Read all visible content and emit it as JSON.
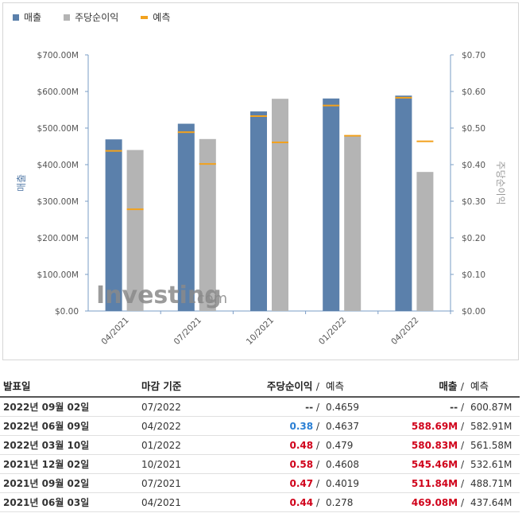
{
  "legend": {
    "revenue": "매출",
    "eps": "주당순이익",
    "forecast": "예측"
  },
  "colors": {
    "revenue": "#5b80ab",
    "eps": "#b4b4b4",
    "forecast": "#f2a21e",
    "beat": "#d0021b",
    "miss": "#2a7fd4"
  },
  "watermark": {
    "brand": "Investing",
    "suffix": ".com"
  },
  "chart_data": {
    "type": "bar",
    "categories": [
      "04/2021",
      "07/2021",
      "10/2021",
      "01/2022",
      "04/2022"
    ],
    "left_axis": {
      "label": "매출",
      "ticks": [
        "$0.00",
        "$100.00M",
        "$200.00M",
        "$300.00M",
        "$400.00M",
        "$500.00M",
        "$600.00M",
        "$700.00M"
      ],
      "range": [
        0,
        700
      ]
    },
    "right_axis": {
      "label": "주당순이익",
      "ticks": [
        "$0.00",
        "$0.10",
        "$0.20",
        "$0.30",
        "$0.40",
        "$0.50",
        "$0.60",
        "$0.70"
      ],
      "range": [
        0,
        0.7
      ]
    },
    "series": [
      {
        "name": "매출",
        "axis": "left",
        "values": [
          469.08,
          511.84,
          545.46,
          580.83,
          588.69
        ],
        "forecast": [
          437.64,
          488.71,
          532.61,
          561.58,
          582.91
        ]
      },
      {
        "name": "주당순이익",
        "axis": "right",
        "values": [
          0.44,
          0.47,
          0.58,
          0.48,
          0.38
        ],
        "forecast": [
          0.278,
          0.4019,
          0.4608,
          0.479,
          0.4637
        ]
      }
    ]
  },
  "table": {
    "headers": {
      "date": "발표일",
      "period": "마감 기준",
      "eps": "주당순이익",
      "forecast1": "예측",
      "revenue": "매출",
      "forecast2": "예측"
    },
    "rows": [
      {
        "date": "2022년 09월 02일",
        "period": "07/2022",
        "eps": "--",
        "eps_forecast": "0.4659",
        "revenue": "--",
        "rev_forecast": "600.87M",
        "eps_cls": "",
        "rev_cls": ""
      },
      {
        "date": "2022년 06월 09일",
        "period": "04/2022",
        "eps": "0.38",
        "eps_forecast": "0.4637",
        "revenue": "588.69M",
        "rev_forecast": "582.91M",
        "eps_cls": "blue",
        "rev_cls": "red"
      },
      {
        "date": "2022년 03월 10일",
        "period": "01/2022",
        "eps": "0.48",
        "eps_forecast": "0.479",
        "revenue": "580.83M",
        "rev_forecast": "561.58M",
        "eps_cls": "red",
        "rev_cls": "red"
      },
      {
        "date": "2021년 12월 02일",
        "period": "10/2021",
        "eps": "0.58",
        "eps_forecast": "0.4608",
        "revenue": "545.46M",
        "rev_forecast": "532.61M",
        "eps_cls": "red",
        "rev_cls": "red"
      },
      {
        "date": "2021년 09월 02일",
        "period": "07/2021",
        "eps": "0.47",
        "eps_forecast": "0.4019",
        "revenue": "511.84M",
        "rev_forecast": "488.71M",
        "eps_cls": "red",
        "rev_cls": "red"
      },
      {
        "date": "2021년 06월 03일",
        "period": "04/2021",
        "eps": "0.44",
        "eps_forecast": "0.278",
        "revenue": "469.08M",
        "rev_forecast": "437.64M",
        "eps_cls": "red",
        "rev_cls": "red"
      }
    ]
  }
}
